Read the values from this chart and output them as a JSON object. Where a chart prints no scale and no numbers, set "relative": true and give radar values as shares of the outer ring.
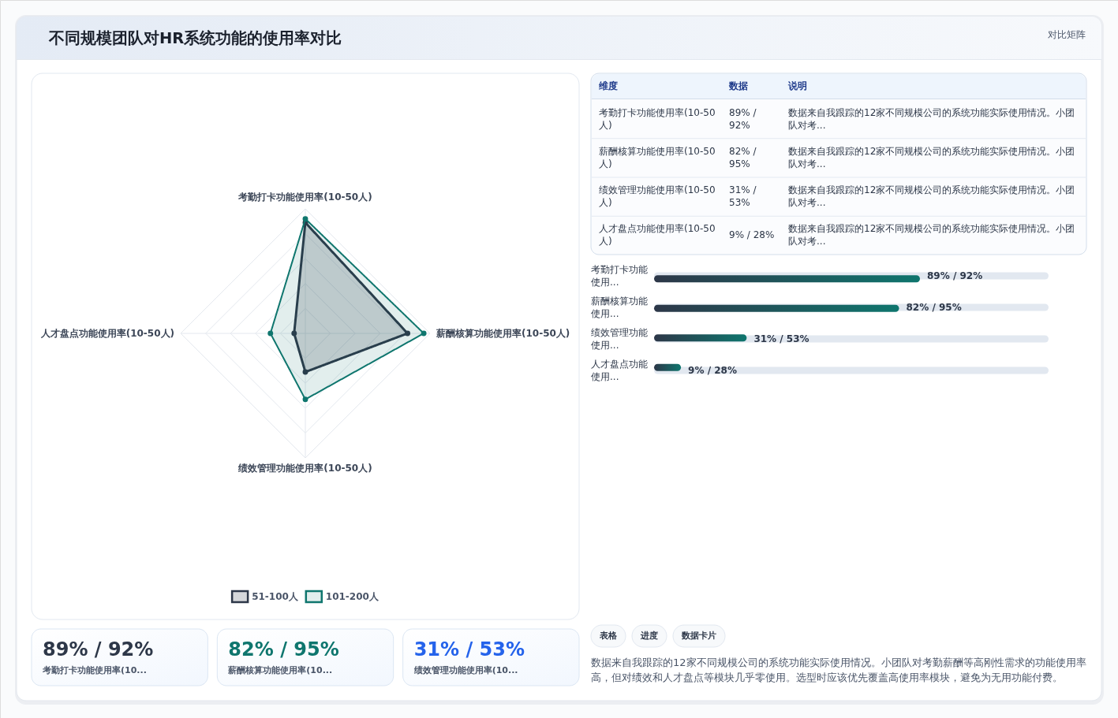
{
  "chart_data": [
    {
      "type": "other",
      "title": "不同规模团队对HR系统功能的使用率对比",
      "subtitle": "对比矩阵"
    },
    {
      "type": "radar",
      "categories": [
        "考勤打卡功能使用率(10-50人)",
        "薪酬核算功能使用率(10-50人)",
        "绩效管理功能使用率(10-50人)",
        "人才盘点功能使用率(10-50人)"
      ],
      "series": [
        {
          "name": "51-100人",
          "color": "#2d3748",
          "values": [
            0.89,
            0.82,
            0.31,
            0.09
          ]
        },
        {
          "name": "101-200人",
          "color": "#0f766e",
          "values": [
            0.92,
            0.95,
            0.53,
            0.28
          ]
        }
      ],
      "relative": true,
      "grid": true,
      "legend": "bottom",
      "marker": "circle"
    },
    {
      "type": "other",
      "categories": [
        "维度",
        "数据",
        "说明"
      ],
      "cell_labels": [
        [
          "考勤打卡功能使用率(10-50人)",
          "89% / 92%",
          "数据来自我跟踪的12家不同规模公司的系统功能实际使用情况。小团队对考..."
        ],
        [
          "薪酬核算功能使用率(10-50人)",
          "82% / 95%",
          "数据来自我跟踪的12家不同规模公司的系统功能实际使用情况。小团队对考..."
        ],
        [
          "绩效管理功能使用率(10-50人)",
          "31% / 53%",
          "数据来自我跟踪的12家不同规模公司的系统功能实际使用情况。小团队对考..."
        ],
        [
          "人才盘点功能使用率(10-50人)",
          "9% / 28%",
          "数据来自我跟踪的12家不同规模公司的系统功能实际使用情况。小团队对考..."
        ]
      ]
    },
    {
      "type": "bar",
      "orientation": "horizontal",
      "categories": [
        "考勤打卡功能使用...",
        "薪酬核算功能使用...",
        "绩效管理功能使用...",
        "人才盘点功能使用..."
      ],
      "values": [
        89,
        82,
        31,
        9
      ],
      "color": "#0f766e",
      "value_labels": [
        "89% / 92%",
        "82% / 95%",
        "31% / 53%",
        "9% / 28%"
      ]
    },
    {
      "type": "other",
      "categories": [
        "考勤打卡功能使用率(10...",
        "薪酬核算功能使用率(10...",
        "绩效管理功能使用率(10..."
      ],
      "value_labels": [
        "89% / 92%",
        "82% / 95%",
        "31% / 53%"
      ]
    },
    {
      "type": "other",
      "categories": [
        "表格",
        "进度",
        "数据卡片"
      ],
      "annotations": [
        "数据来自我跟踪的12家不同规模公司的系统功能实际使用情况。小团队对考勤薪酬等高刚性需求的功能使用率高，但对绩效和人才盘点等模块几乎零使用。选型时应该优先覆盖高使用率模块，避免为无用功能付费。"
      ]
    }
  ]
}
